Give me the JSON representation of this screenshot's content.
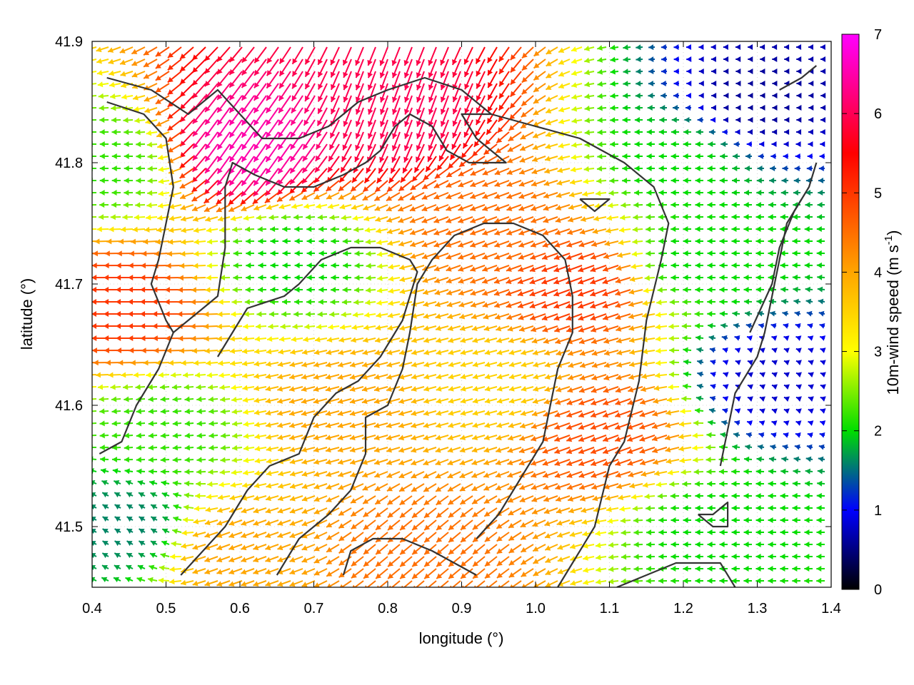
{
  "chart_data": {
    "type": "vector-field",
    "title": "",
    "xlabel": "longitude (°)",
    "ylabel": "latitude (°)",
    "xlim": [
      0.4,
      1.4
    ],
    "ylim": [
      41.45,
      41.9
    ],
    "xticks": [
      "0.4",
      "0.5",
      "0.6",
      "0.7",
      "0.8",
      "0.9",
      "1.0",
      "1.1",
      "1.2",
      "1.3",
      "1.4"
    ],
    "xtick_values": [
      0.4,
      0.5,
      0.6,
      0.7,
      0.8,
      0.9,
      1.0,
      1.1,
      1.2,
      1.3,
      1.4
    ],
    "yticks": [
      "41.5",
      "41.6",
      "41.7",
      "41.8",
      "41.9"
    ],
    "ytick_values": [
      41.5,
      41.6,
      41.7,
      41.8,
      41.9
    ],
    "grid": true,
    "colorbar": {
      "label_main": "10m-wind speed (m s",
      "label_sup": "-1",
      "label_close": ")",
      "ticks": [
        "0",
        "1",
        "2",
        "3",
        "4",
        "5",
        "6",
        "7"
      ],
      "tick_values": [
        0,
        1,
        2,
        3,
        4,
        5,
        6,
        7
      ],
      "range": [
        0,
        7
      ],
      "colors": [
        "#000000",
        "#0000ff",
        "#00dd00",
        "#ffff00",
        "#ffa500",
        "#ff0000",
        "#ff00ff"
      ],
      "color_positions": [
        0,
        1,
        2,
        3,
        4,
        5.5,
        7
      ]
    },
    "wind_field": {
      "description_keys": "regions of wind speed in m/s, direction in degrees (meteorological-to: 180=toward west)",
      "regions": [
        {
          "lon": 0.62,
          "lat": 41.82,
          "speed": 6.5,
          "dir_deg": 235
        },
        {
          "lon": 0.82,
          "lat": 41.85,
          "speed": 6.0,
          "dir_deg": 250
        },
        {
          "lon": 0.45,
          "lat": 41.68,
          "speed": 5.0,
          "dir_deg": 180
        },
        {
          "lon": 1.07,
          "lat": 41.7,
          "speed": 5.0,
          "dir_deg": 200
        },
        {
          "lon": 0.95,
          "lat": 41.75,
          "speed": 4.5,
          "dir_deg": 200
        },
        {
          "lon": 0.75,
          "lat": 41.6,
          "speed": 4.0,
          "dir_deg": 195
        },
        {
          "lon": 1.1,
          "lat": 41.58,
          "speed": 4.8,
          "dir_deg": 200
        },
        {
          "lon": 0.85,
          "lat": 41.48,
          "speed": 4.5,
          "dir_deg": 220
        },
        {
          "lon": 0.6,
          "lat": 41.48,
          "speed": 4.0,
          "dir_deg": 200
        },
        {
          "lon": 0.68,
          "lat": 41.72,
          "speed": 2.0,
          "dir_deg": 180
        },
        {
          "lon": 0.5,
          "lat": 41.58,
          "speed": 2.2,
          "dir_deg": 185
        },
        {
          "lon": 1.3,
          "lat": 41.85,
          "speed": 0.6,
          "dir_deg": 180
        },
        {
          "lon": 1.32,
          "lat": 41.62,
          "speed": 0.8,
          "dir_deg": 160
        },
        {
          "lon": 1.22,
          "lat": 41.72,
          "speed": 2.0,
          "dir_deg": 180
        },
        {
          "lon": 1.2,
          "lat": 41.8,
          "speed": 2.0,
          "dir_deg": 180
        },
        {
          "lon": 0.42,
          "lat": 41.8,
          "speed": 2.2,
          "dir_deg": 180
        },
        {
          "lon": 0.45,
          "lat": 41.5,
          "speed": 1.6,
          "dir_deg": 150
        },
        {
          "lon": 1.25,
          "lat": 41.5,
          "speed": 2.0,
          "dir_deg": 180
        },
        {
          "lon": 0.95,
          "lat": 41.62,
          "speed": 3.5,
          "dir_deg": 195
        }
      ]
    },
    "contours": [
      [
        [
          0.42,
          41.87
        ],
        [
          0.48,
          41.86
        ],
        [
          0.53,
          41.84
        ],
        [
          0.57,
          41.86
        ],
        [
          0.6,
          41.84
        ],
        [
          0.63,
          41.82
        ],
        [
          0.68,
          41.82
        ],
        [
          0.72,
          41.83
        ],
        [
          0.76,
          41.85
        ],
        [
          0.8,
          41.86
        ],
        [
          0.85,
          41.87
        ],
        [
          0.9,
          41.86
        ],
        [
          0.94,
          41.84
        ]
      ],
      [
        [
          0.42,
          41.85
        ],
        [
          0.47,
          41.84
        ],
        [
          0.5,
          41.82
        ],
        [
          0.51,
          41.78
        ],
        [
          0.5,
          41.75
        ],
        [
          0.49,
          41.72
        ],
        [
          0.48,
          41.7
        ],
        [
          0.5,
          41.67
        ],
        [
          0.51,
          41.66
        ]
      ],
      [
        [
          0.51,
          41.66
        ],
        [
          0.55,
          41.68
        ],
        [
          0.57,
          41.69
        ],
        [
          0.58,
          41.73
        ],
        [
          0.58,
          41.78
        ],
        [
          0.59,
          41.8
        ],
        [
          0.62,
          41.79
        ],
        [
          0.66,
          41.78
        ],
        [
          0.7,
          41.78
        ],
        [
          0.74,
          41.79
        ],
        [
          0.77,
          41.8
        ],
        [
          0.79,
          41.81
        ],
        [
          0.81,
          41.83
        ],
        [
          0.83,
          41.84
        ],
        [
          0.86,
          41.83
        ],
        [
          0.88,
          41.81
        ],
        [
          0.91,
          41.8
        ],
        [
          0.96,
          41.8
        ],
        [
          0.92,
          41.82
        ],
        [
          0.9,
          41.84
        ],
        [
          0.94,
          41.84
        ],
        [
          1.0,
          41.83
        ],
        [
          1.06,
          41.82
        ],
        [
          1.12,
          41.8
        ],
        [
          1.16,
          41.78
        ],
        [
          1.18,
          41.75
        ],
        [
          1.17,
          41.72
        ],
        [
          1.15,
          41.67
        ],
        [
          1.14,
          41.62
        ],
        [
          1.12,
          41.57
        ],
        [
          1.1,
          41.55
        ],
        [
          1.08,
          41.5
        ],
        [
          1.05,
          41.47
        ],
        [
          1.03,
          41.45
        ]
      ],
      [
        [
          0.41,
          41.56
        ],
        [
          0.44,
          41.57
        ],
        [
          0.46,
          41.6
        ],
        [
          0.49,
          41.63
        ],
        [
          0.51,
          41.66
        ]
      ],
      [
        [
          0.52,
          41.46
        ],
        [
          0.55,
          41.48
        ],
        [
          0.58,
          41.5
        ],
        [
          0.61,
          41.53
        ],
        [
          0.64,
          41.55
        ],
        [
          0.68,
          41.56
        ],
        [
          0.7,
          41.59
        ],
        [
          0.73,
          41.61
        ],
        [
          0.76,
          41.62
        ],
        [
          0.79,
          41.64
        ],
        [
          0.82,
          41.67
        ],
        [
          0.84,
          41.71
        ],
        [
          0.83,
          41.72
        ],
        [
          0.79,
          41.73
        ],
        [
          0.75,
          41.73
        ],
        [
          0.71,
          41.72
        ],
        [
          0.68,
          41.7
        ],
        [
          0.66,
          41.69
        ],
        [
          0.61,
          41.68
        ],
        [
          0.59,
          41.66
        ],
        [
          0.57,
          41.64
        ]
      ],
      [
        [
          0.65,
          41.46
        ],
        [
          0.68,
          41.49
        ],
        [
          0.72,
          41.51
        ],
        [
          0.75,
          41.53
        ],
        [
          0.77,
          41.56
        ],
        [
          0.77,
          41.59
        ],
        [
          0.8,
          41.6
        ],
        [
          0.82,
          41.63
        ],
        [
          0.83,
          41.66
        ],
        [
          0.84,
          41.7
        ],
        [
          0.86,
          41.72
        ],
        [
          0.89,
          41.74
        ],
        [
          0.93,
          41.75
        ],
        [
          0.97,
          41.75
        ],
        [
          1.01,
          41.74
        ],
        [
          1.04,
          41.72
        ],
        [
          1.05,
          41.69
        ],
        [
          1.05,
          41.66
        ],
        [
          1.03,
          41.63
        ],
        [
          1.02,
          41.6
        ],
        [
          1.01,
          41.57
        ],
        [
          0.98,
          41.54
        ],
        [
          0.95,
          41.51
        ],
        [
          0.92,
          41.49
        ]
      ],
      [
        [
          0.74,
          41.46
        ],
        [
          0.75,
          41.48
        ],
        [
          0.78,
          41.49
        ],
        [
          0.82,
          41.49
        ],
        [
          0.86,
          41.48
        ],
        [
          0.89,
          41.47
        ],
        [
          0.92,
          41.46
        ]
      ],
      [
        [
          1.11,
          41.45
        ],
        [
          1.15,
          41.46
        ],
        [
          1.19,
          41.47
        ],
        [
          1.22,
          41.47
        ],
        [
          1.25,
          41.47
        ],
        [
          1.27,
          41.45
        ]
      ],
      [
        [
          1.22,
          41.51
        ],
        [
          1.24,
          41.51
        ],
        [
          1.26,
          41.52
        ],
        [
          1.26,
          41.5
        ],
        [
          1.24,
          41.5
        ],
        [
          1.22,
          41.51
        ]
      ],
      [
        [
          1.29,
          41.66
        ],
        [
          1.32,
          41.7
        ],
        [
          1.33,
          41.73
        ],
        [
          1.35,
          41.76
        ],
        [
          1.37,
          41.78
        ],
        [
          1.38,
          41.8
        ]
      ],
      [
        [
          1.25,
          41.55
        ],
        [
          1.27,
          41.61
        ],
        [
          1.3,
          41.64
        ],
        [
          1.31,
          41.66
        ],
        [
          1.32,
          41.69
        ],
        [
          1.33,
          41.72
        ],
        [
          1.34,
          41.75
        ],
        [
          1.36,
          41.77
        ]
      ],
      [
        [
          1.33,
          41.86
        ],
        [
          1.36,
          41.87
        ],
        [
          1.38,
          41.88
        ]
      ],
      [
        [
          1.06,
          41.77
        ],
        [
          1.08,
          41.76
        ],
        [
          1.1,
          41.77
        ],
        [
          1.08,
          41.77
        ],
        [
          1.06,
          41.77
        ]
      ]
    ]
  }
}
